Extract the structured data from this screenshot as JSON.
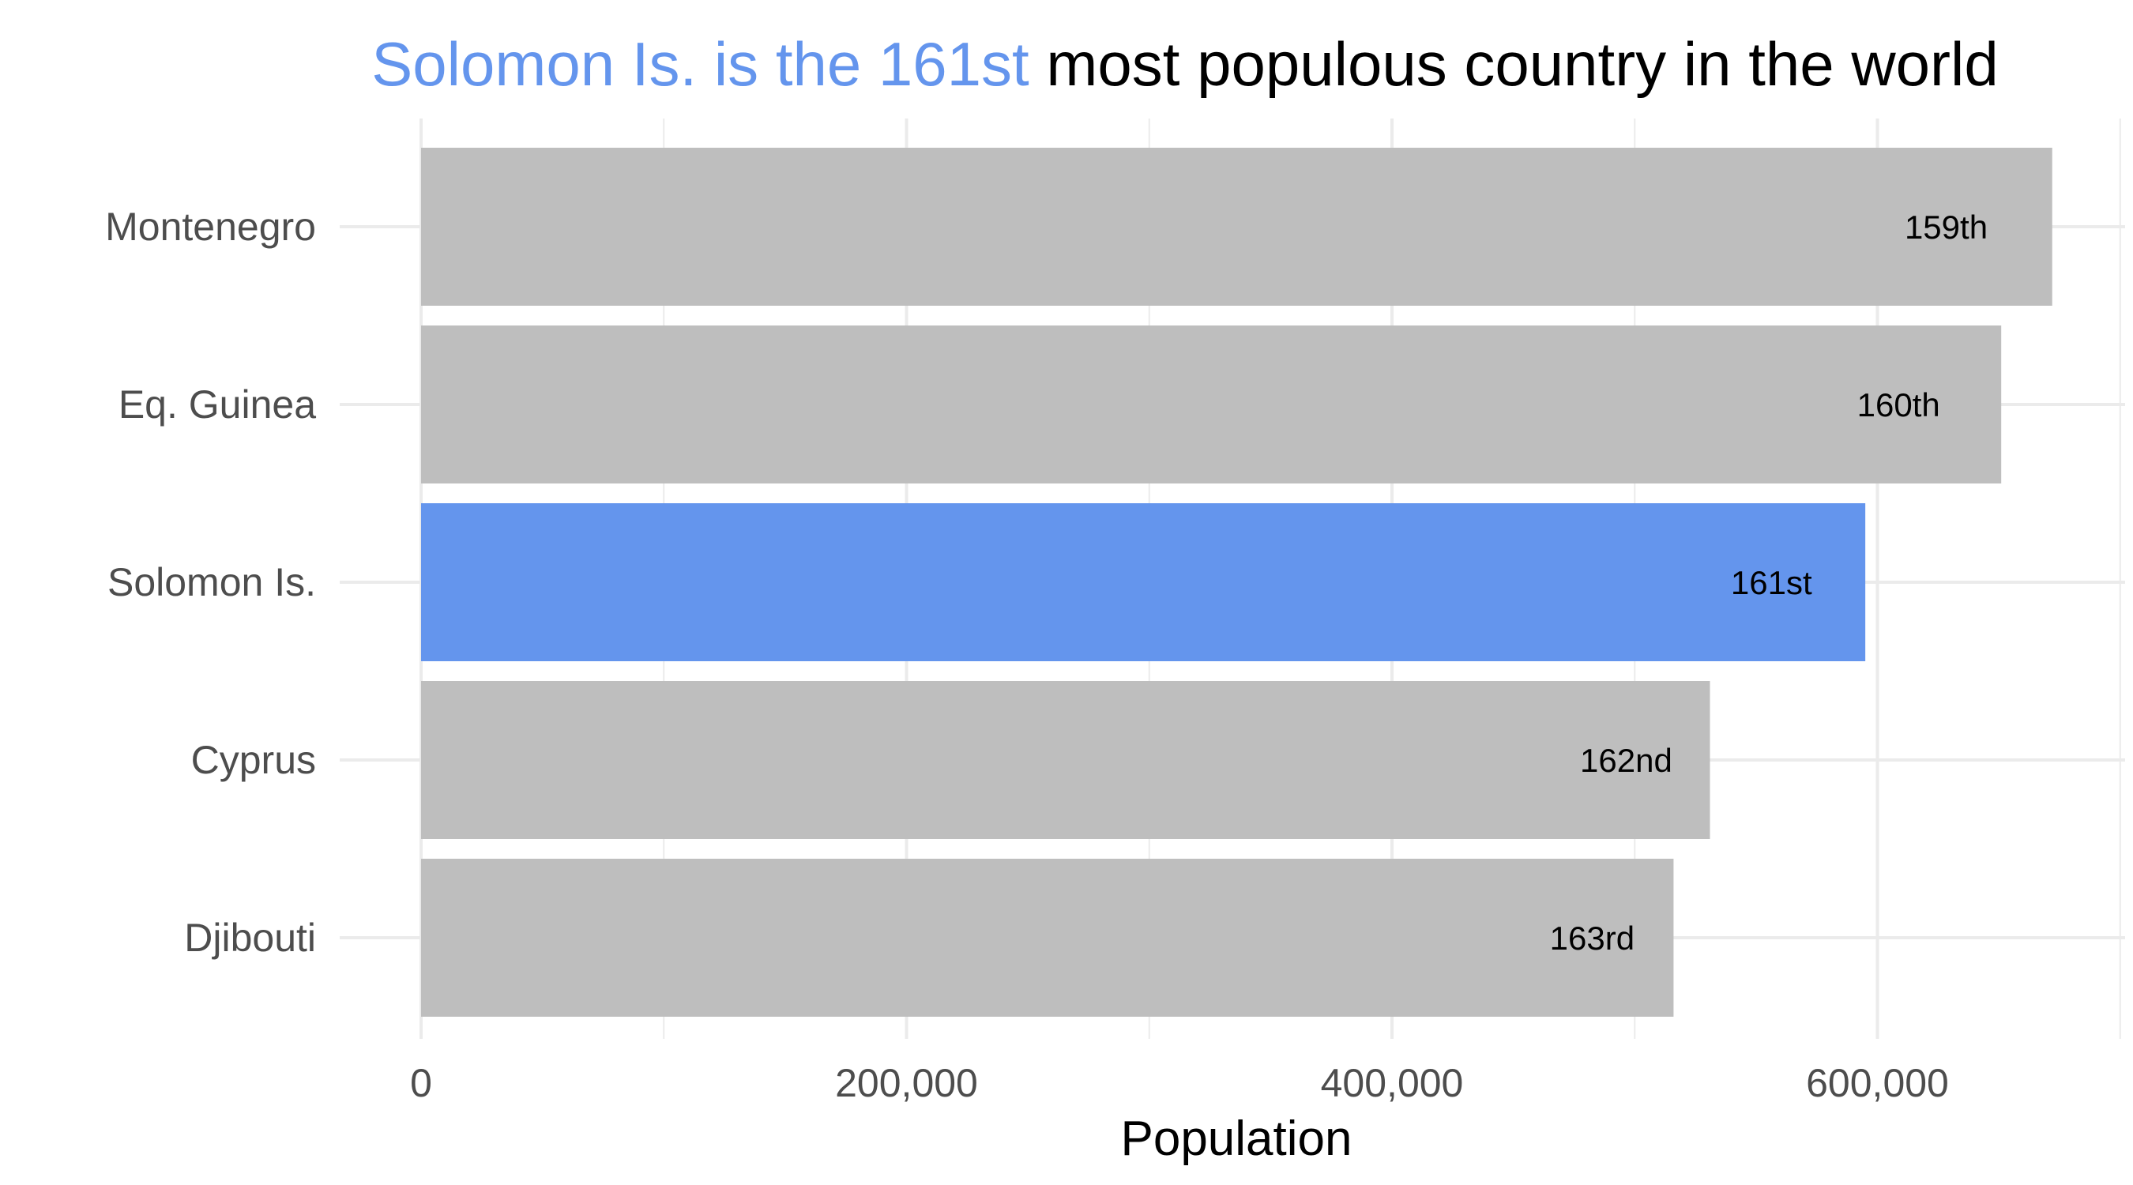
{
  "chart_data": {
    "type": "bar",
    "orientation": "horizontal",
    "title": {
      "highlight": "Solomon Is. is the 161st",
      "rest": " most populous country in the world"
    },
    "xlabel": "Population",
    "ylabel": "",
    "xlim": [
      0,
      700000
    ],
    "x_ticks": [
      0,
      200000,
      400000,
      600000
    ],
    "x_tick_labels": [
      "0",
      "200,000",
      "400,000",
      "600,000"
    ],
    "x_minor_ticks": [
      100000,
      300000,
      500000,
      700000
    ],
    "grid": true,
    "legend": "none",
    "categories": [
      "Montenegro",
      "Eq. Guinea",
      "Solomon Is.",
      "Cyprus",
      "Djibouti"
    ],
    "values": [
      672000,
      651000,
      595000,
      531000,
      516000
    ],
    "data_labels": [
      "159th",
      "160th",
      "161st",
      "162nd",
      "163rd"
    ],
    "highlighted_category": "Solomon Is.",
    "colors": {
      "bar": "#bebebe",
      "highlight": "#6495ed",
      "grid": "#ebebeb",
      "title_rest": "#000000"
    }
  }
}
